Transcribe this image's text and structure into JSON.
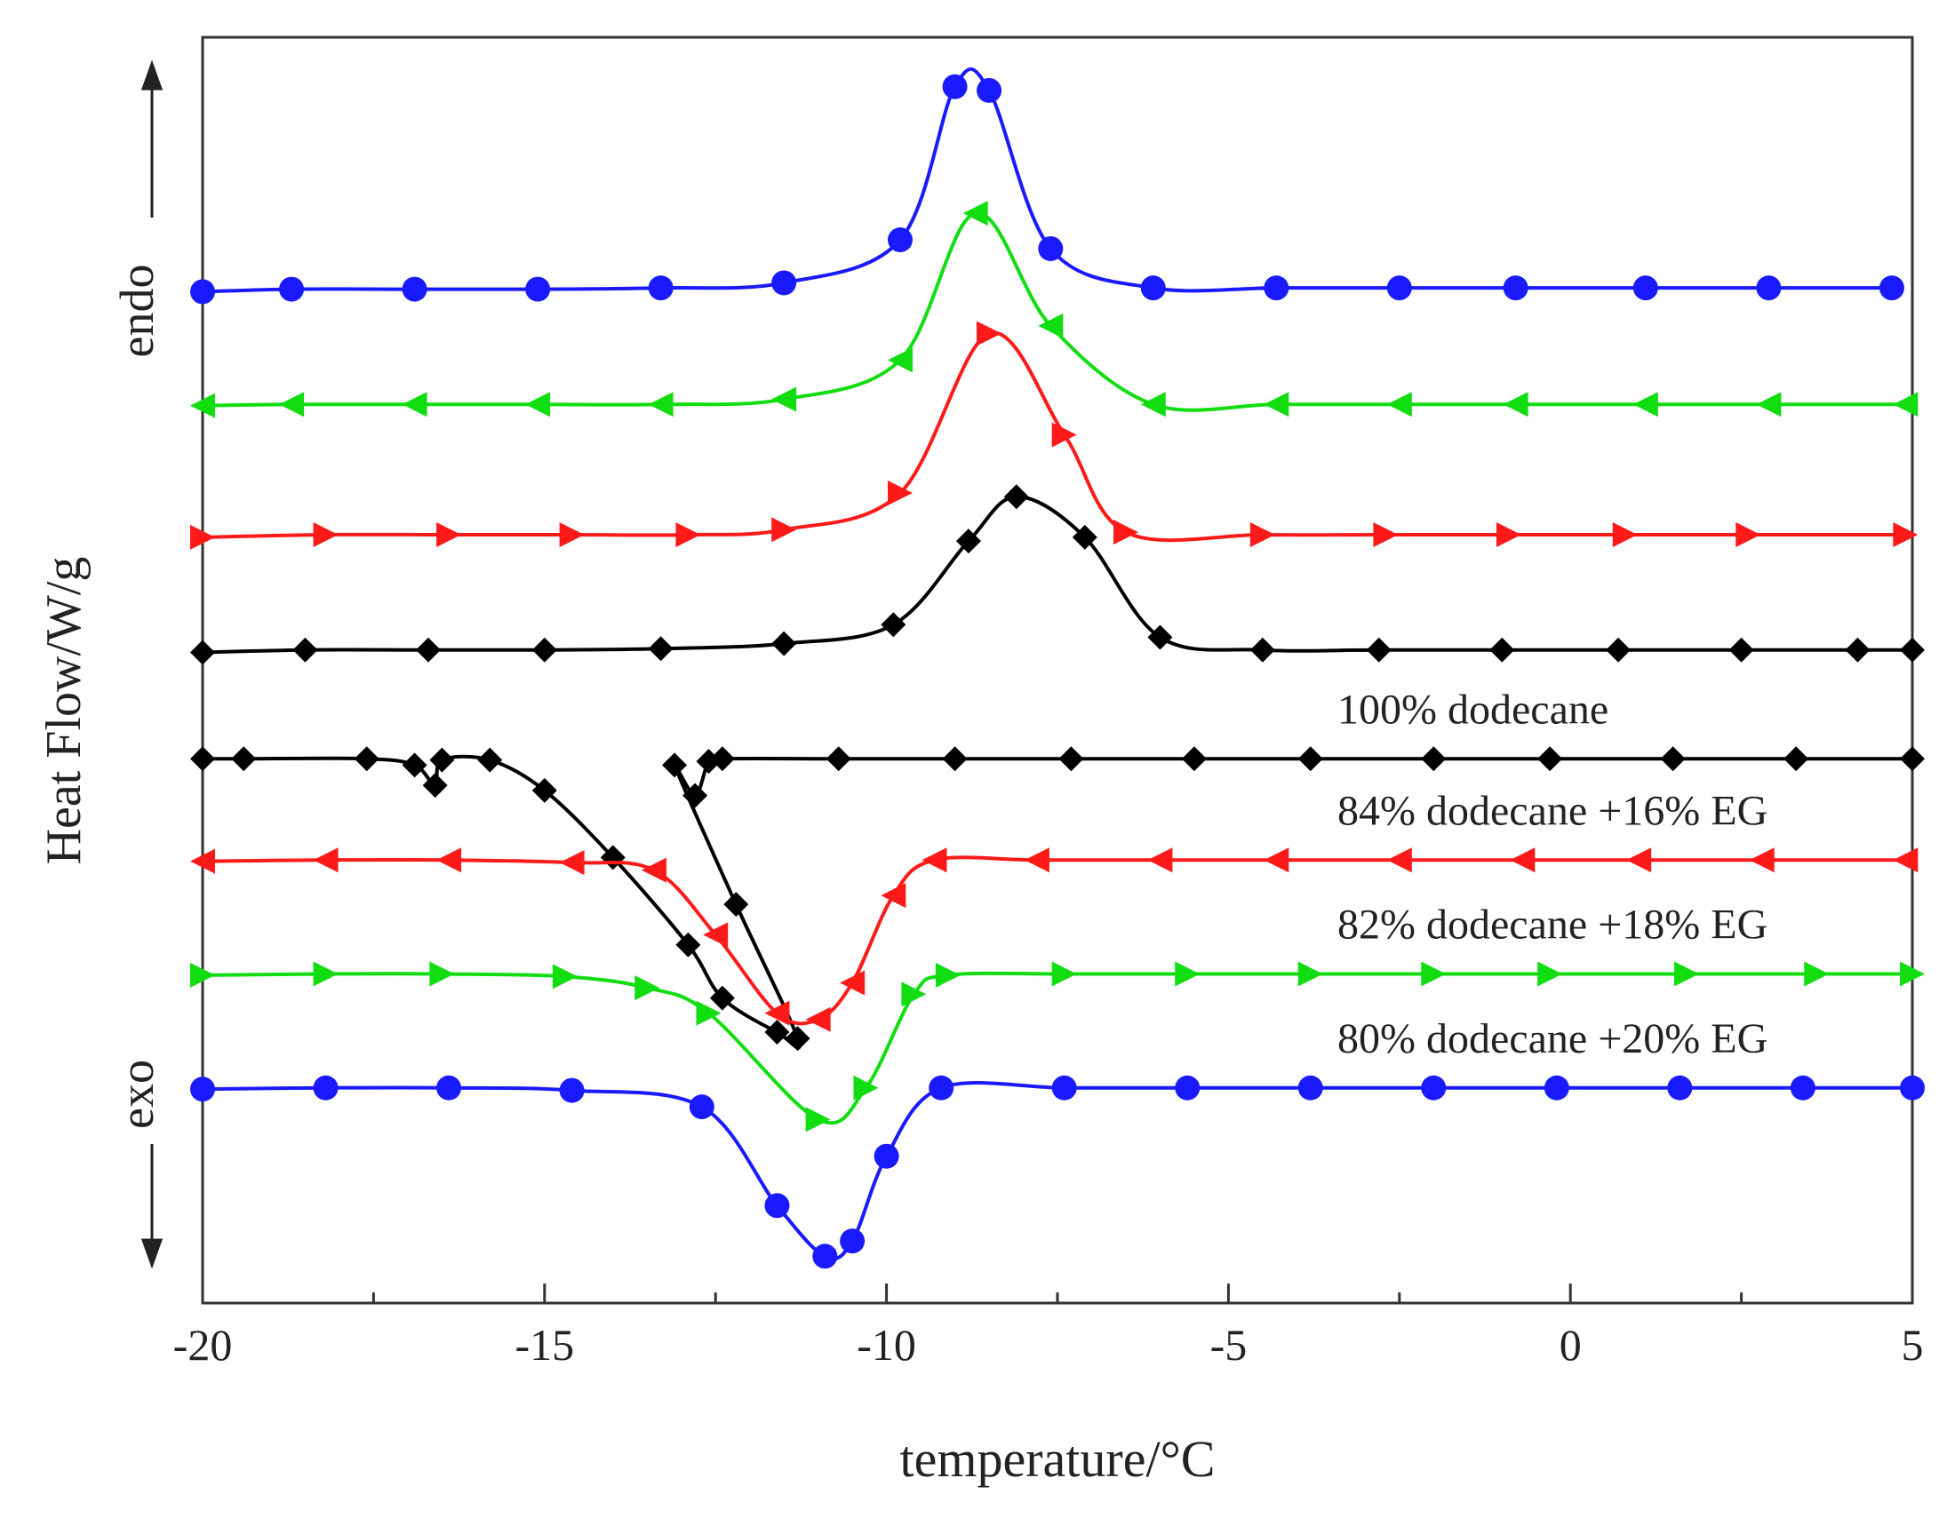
{
  "chart_data": {
    "type": "line",
    "xlabel": "temperature/°C",
    "ylabel": "Heat Flow/W/g",
    "annotations": [
      "endo",
      "exo"
    ],
    "xlim": [
      -20,
      5
    ],
    "xticks": [
      -20,
      -15,
      -10,
      -5,
      0,
      5
    ],
    "xminorticks": [
      -17.5,
      -12.5,
      -7.5,
      -2.5,
      2.5
    ],
    "ylim": [
      0,
      100
    ],
    "series": [
      {
        "color": "#1a1aff",
        "marker": "circle",
        "x": [
          -20,
          -18.7,
          -16.9,
          -15.1,
          -13.3,
          -11.5,
          -9.8,
          -9.0,
          -8.5,
          -7.6,
          -6.1,
          -4.3,
          -2.5,
          -0.8,
          1.1,
          2.9,
          4.7
        ],
        "values": [
          79.9,
          80.1,
          80.1,
          80.1,
          80.2,
          80.6,
          84.0,
          96.1,
          95.8,
          83.3,
          80.2,
          80.2,
          80.2,
          80.2,
          80.2,
          80.2,
          80.2
        ]
      },
      {
        "color": "#11dd11",
        "marker": "triangle-left",
        "x": [
          -20,
          -18.7,
          -16.9,
          -15.1,
          -13.3,
          -11.5,
          -9.8,
          -8.7,
          -7.6,
          -6.1,
          -4.3,
          -2.5,
          -0.8,
          1.1,
          2.9,
          4.9
        ],
        "values": [
          70.9,
          71.0,
          71.0,
          71.0,
          71.0,
          71.4,
          74.5,
          86.1,
          77.2,
          71.0,
          71.0,
          71.0,
          71.0,
          71.0,
          71.0,
          71.0
        ]
      },
      {
        "color": "#ff1a1a",
        "marker": "triangle-right",
        "x": [
          -20,
          -18.2,
          -16.4,
          -14.6,
          -12.9,
          -11.5,
          -9.8,
          -8.5,
          -7.4,
          -6.5,
          -4.5,
          -2.7,
          -0.9,
          0.8,
          2.6,
          4.9
        ],
        "values": [
          60.5,
          60.7,
          60.7,
          60.7,
          60.7,
          61.1,
          64.0,
          76.6,
          68.6,
          60.9,
          60.7,
          60.7,
          60.7,
          60.7,
          60.7,
          60.7
        ]
      },
      {
        "color": "#000000",
        "marker": "diamond",
        "x": [
          -20,
          -18.5,
          -16.7,
          -15,
          -13.3,
          -11.5,
          -9.9,
          -8.8,
          -8.1,
          -7.1,
          -6.0,
          -4.5,
          -2.8,
          -1.0,
          0.7,
          2.5,
          4.2,
          5
        ],
        "values": [
          51.4,
          51.6,
          51.6,
          51.6,
          51.7,
          52.1,
          53.6,
          60.2,
          63.7,
          60.5,
          52.6,
          51.6,
          51.6,
          51.6,
          51.6,
          51.6,
          51.6,
          51.6
        ]
      },
      {
        "name": "100% dodecane",
        "color": "#000000",
        "marker": "diamond",
        "x": [
          -20,
          -19.4,
          -17.6,
          -16.9,
          -16.6,
          -16.5,
          -15.8,
          -15.0,
          -14.0,
          -12.9,
          -12.4,
          -11.6,
          -11.3,
          -12.2,
          -13.1,
          -12.8,
          -12.6,
          -12.4,
          -10.7,
          -9.0,
          -7.3,
          -5.5,
          -3.8,
          -2.0,
          -0.3,
          1.5,
          3.3,
          5
        ],
        "values": [
          43.0,
          43.0,
          43.0,
          42.5,
          40.9,
          42.9,
          42.9,
          40.5,
          35.2,
          28.3,
          24.1,
          21.4,
          20.9,
          31.5,
          42.5,
          40.1,
          42.8,
          43.0,
          43.0,
          43.0,
          43.0,
          43.0,
          43.0,
          43.0,
          43.0,
          43.0,
          43.0,
          43.0
        ]
      },
      {
        "name": "84% dodecane +16% EG",
        "color": "#ff1a1a",
        "marker": "triangle-left",
        "x": [
          -20,
          -18.2,
          -16.4,
          -14.6,
          -13.4,
          -12.5,
          -11.6,
          -11.0,
          -10.5,
          -9.9,
          -9.3,
          -7.8,
          -6.0,
          -4.3,
          -2.5,
          -0.7,
          1.0,
          2.8,
          4.9
        ],
        "values": [
          34.9,
          35.0,
          35.0,
          34.8,
          34.2,
          29.1,
          22.9,
          22.4,
          25.3,
          32.2,
          35.0,
          35.0,
          35.0,
          35.0,
          35.0,
          35.0,
          35.0,
          35.0,
          35.0
        ]
      },
      {
        "name": "82% dodecane +18% EG",
        "color": "#11dd11",
        "marker": "triangle-right",
        "x": [
          -20,
          -18.2,
          -16.5,
          -14.7,
          -13.5,
          -12.6,
          -11.0,
          -10.3,
          -9.6,
          -9.1,
          -7.4,
          -5.6,
          -3.8,
          -2.0,
          -0.3,
          1.7,
          3.6,
          5
        ],
        "values": [
          25.9,
          26.0,
          26.0,
          25.8,
          24.9,
          22.9,
          14.5,
          17.0,
          24.4,
          25.9,
          26.0,
          26.0,
          26.0,
          26.0,
          26.0,
          26.0,
          26.0,
          26.0
        ]
      },
      {
        "name": "80% dodecane +20% EG",
        "color": "#1a1aff",
        "marker": "circle",
        "x": [
          -20,
          -18.2,
          -16.4,
          -14.6,
          -12.7,
          -11.6,
          -10.9,
          -10.5,
          -10.0,
          -9.2,
          -7.4,
          -5.6,
          -3.8,
          -2.0,
          -0.2,
          1.6,
          3.4,
          5
        ],
        "values": [
          16.9,
          17.0,
          17.0,
          16.8,
          15.5,
          7.7,
          3.7,
          4.9,
          11.6,
          17.0,
          17.0,
          17.0,
          17.0,
          17.0,
          17.0,
          17.0,
          17.0,
          17.0
        ]
      }
    ]
  }
}
